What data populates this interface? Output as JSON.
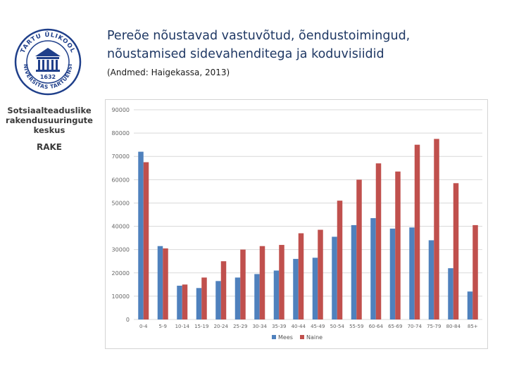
{
  "slide": {
    "title_line1": "Pereõe nõustavad vastuvõtud, õendustoimingud,",
    "title_line2": "nõustamised sidevahenditega ja koduvisiidid",
    "source": "(Andmed: Haigekassa, 2013)"
  },
  "sidebar": {
    "seal_name_line": "UNIVERSITAS TARTUENSIS",
    "seal_top_line": "TARTU ÜLIKOOL",
    "seal_year": "1632",
    "rake_name_line1": "Sotsiaalteaduslike",
    "rake_name_line2": "rakendusuuringute",
    "rake_name_line3": "keskus",
    "rake_abbr": "RAKE"
  },
  "colors": {
    "mees": "#4f81bd",
    "naine": "#c0504d",
    "grid": "#d9d9d9",
    "title": "#1f3864"
  },
  "chart_data": {
    "type": "bar",
    "title": "",
    "xlabel": "",
    "ylabel": "",
    "ylim": [
      0,
      90000
    ],
    "yticks": [
      "0",
      "10000",
      "20000",
      "30000",
      "40000",
      "50000",
      "60000",
      "70000",
      "80000",
      "90000"
    ],
    "grid": true,
    "legend_position": "bottom",
    "categories": [
      "0-4",
      "5-9",
      "10-14",
      "15-19",
      "20-24",
      "25-29",
      "30-34",
      "35-39",
      "40-44",
      "45-49",
      "50-54",
      "55-59",
      "60-64",
      "65-69",
      "70-74",
      "75-79",
      "80-84",
      "85+"
    ],
    "series": [
      {
        "name": "Mees",
        "values": [
          72000,
          31500,
          14500,
          13500,
          16500,
          18000,
          19500,
          21000,
          26000,
          26500,
          35500,
          40500,
          43500,
          39000,
          39500,
          34000,
          22000,
          12000
        ]
      },
      {
        "name": "Naine",
        "values": [
          67500,
          30500,
          15000,
          18000,
          25000,
          30000,
          31500,
          32000,
          37000,
          38500,
          51000,
          60000,
          67000,
          63500,
          75000,
          77500,
          58500,
          40500
        ]
      }
    ]
  }
}
